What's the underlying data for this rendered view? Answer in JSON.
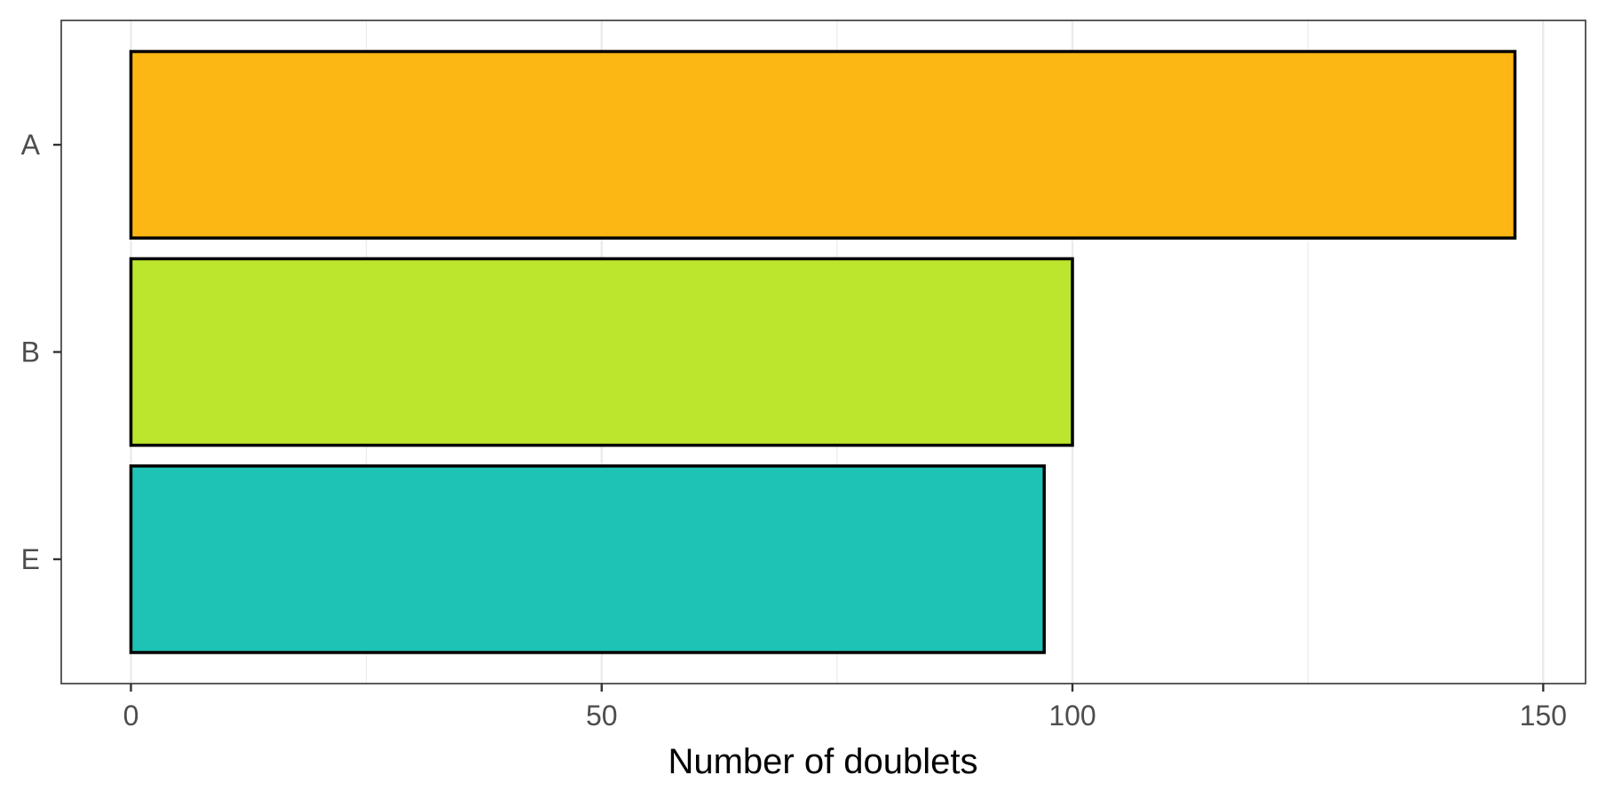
{
  "chart_data": {
    "type": "bar",
    "orientation": "horizontal",
    "categories": [
      "A",
      "B",
      "E"
    ],
    "values": [
      147,
      100,
      97
    ],
    "colors": [
      "#FDB714",
      "#BCE52E",
      "#1FC3B6"
    ],
    "bar_outline_color": "#000000",
    "xlabel": "Number of doublets",
    "ylabel": "",
    "xlim": [
      -7.4,
      154.5
    ],
    "x_ticks": [
      0,
      50,
      100,
      150
    ],
    "x_tick_labels": [
      "0",
      "50",
      "100",
      "150"
    ],
    "grid": true,
    "grid_color": "#EBEBEB",
    "panel_border_color": "#333333",
    "legend": "none"
  }
}
